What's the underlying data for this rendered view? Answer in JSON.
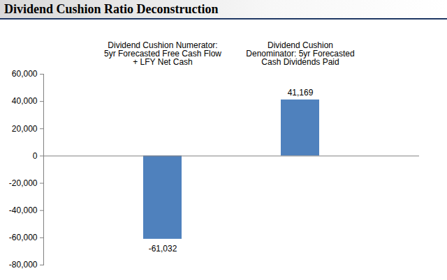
{
  "chart_data": {
    "type": "bar",
    "title": "Dividend Cushion Ratio Deconstruction",
    "categories": [
      "Dividend Cushion Numerator: 5yr Forecasted Free Cash Flow + LFY Net Cash",
      "Dividend Cushion Denominator: 5yr Forecasted Cash Dividends Paid"
    ],
    "values": [
      -61032,
      41169
    ],
    "value_labels": [
      "-61,032",
      "41,169"
    ],
    "data_labels": true,
    "color": "#4f81bd",
    "ylim": [
      -80000,
      60000
    ],
    "yticks": [
      {
        "value": -80000,
        "label": "-80,000"
      },
      {
        "value": -60000,
        "label": "-60,000"
      },
      {
        "value": -40000,
        "label": "-40,000"
      },
      {
        "value": -20000,
        "label": "-20,000"
      },
      0,
      {
        "value": 20000,
        "label": "20,000"
      },
      {
        "value": 40000,
        "label": "40,000"
      },
      {
        "value": 60000,
        "label": "60,000"
      }
    ],
    "grid": false
  }
}
